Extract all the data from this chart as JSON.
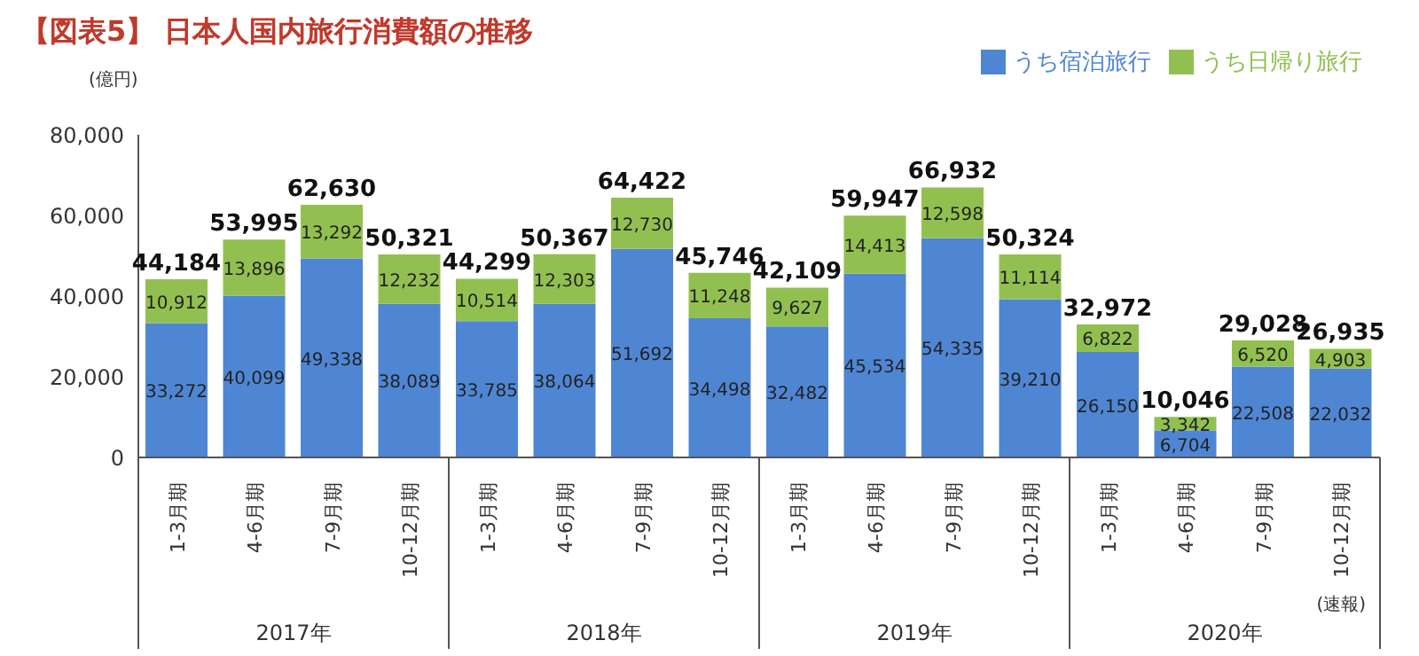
{
  "chart_data": {
    "type": "bar",
    "title": "【図表5】 日本人国内旅行消費額の推移",
    "ylabel": "(億円)",
    "categories": [
      "1-3月期",
      "4-6月期",
      "7-9月期",
      "10-12月期",
      "1-3月期",
      "4-6月期",
      "7-9月期",
      "10-12月期",
      "1-3月期",
      "4-6月期",
      "7-9月期",
      "10-12月期",
      "1-3月期",
      "4-6月期",
      "7-9月期",
      "10-12月期"
    ],
    "series": [
      {
        "name": "うち宿泊旅行",
        "color": "#4f86d4",
        "values": [
          33272,
          40099,
          49338,
          38089,
          33785,
          38064,
          51692,
          34498,
          32482,
          45534,
          54335,
          39210,
          26150,
          6704,
          22508,
          22032
        ],
        "value_labels": [
          "33,272",
          "40,099",
          "49,338",
          "38,089",
          "33,785",
          "38,064",
          "51,692",
          "34,498",
          "32,482",
          "45,534",
          "54,335",
          "39,210",
          "26,150",
          "6,704",
          "22,508",
          "22,032"
        ]
      },
      {
        "name": "うち日帰り旅行",
        "color": "#92c050",
        "values": [
          10912,
          13896,
          13292,
          12232,
          10514,
          12303,
          12730,
          11248,
          9627,
          14413,
          12598,
          11114,
          6822,
          3342,
          6520,
          4903
        ],
        "value_labels": [
          "10,912",
          "13,896",
          "13,292",
          "12,232",
          "10,514",
          "12,303",
          "12,730",
          "11,248",
          "9,627",
          "14,413",
          "12,598",
          "11,114",
          "6,822",
          "3,342",
          "6,520",
          "4,903"
        ]
      }
    ],
    "stacked": true,
    "totals": [
      "44,184",
      "53,995",
      "62,630",
      "50,321",
      "44,299",
      "50,367",
      "64,422",
      "45,746",
      "42,109",
      "59,947",
      "66,932",
      "50,324",
      "32,972",
      "10,046",
      "29,028",
      "26,935"
    ],
    "ylim": [
      0,
      80000
    ],
    "yticks": [
      0,
      {
        "value": 20000,
        "label": "20,000"
      },
      {
        "value": 40000,
        "label": "40,000"
      },
      {
        "value": 60000,
        "label": "60,000"
      },
      {
        "value": 80000,
        "label": "80,000"
      }
    ],
    "grid": false,
    "legend": "top right",
    "annotations": [
      "2017年",
      "2018年",
      "2019年",
      "2020年",
      "(速報)"
    ]
  }
}
